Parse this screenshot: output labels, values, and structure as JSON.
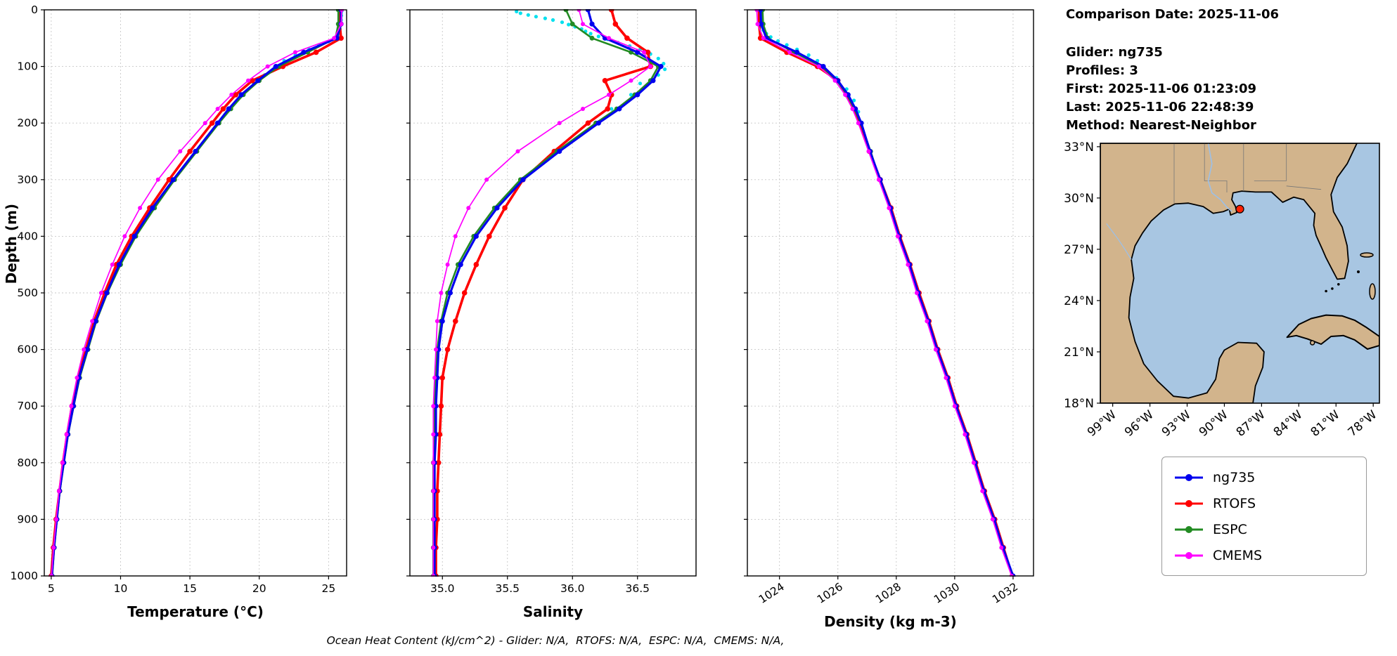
{
  "info_panel": {
    "comparison_date": "Comparison Date: 2025-11-06",
    "lines": [
      "Glider: ng735",
      "Profiles: 3",
      "First: 2025-11-06 01:23:09",
      "Last: 2025-11-06 22:48:39",
      "Method: Nearest-Neighbor"
    ]
  },
  "ylabel": "Depth (m)",
  "caption": "Ocean Heat Content (kJ/cm^2) - Glider: N/A,  RTOFS: N/A,  ESPC: N/A,  CMEMS: N/A,",
  "legend": {
    "items": [
      {
        "label": "ng735",
        "color": "#0000ee"
      },
      {
        "label": "RTOFS",
        "color": "#ff0000"
      },
      {
        "label": "ESPC",
        "color": "#228b22"
      },
      {
        "label": "CMEMS",
        "color": "#ff00ff"
      }
    ]
  },
  "map": {
    "extent": {
      "lon_w_max": 100.0,
      "lon_w_min": 77.5,
      "lat_max": 33.2,
      "lat_min": 18.0
    },
    "lat_ticks": [
      {
        "v": 33,
        "label": "33°N"
      },
      {
        "v": 30,
        "label": "30°N"
      },
      {
        "v": 27,
        "label": "27°N"
      },
      {
        "v": 24,
        "label": "24°N"
      },
      {
        "v": 21,
        "label": "21°N"
      },
      {
        "v": 18,
        "label": "18°N"
      }
    ],
    "lon_ticks": [
      {
        "v": 99,
        "label": "99°W"
      },
      {
        "v": 96,
        "label": "96°W"
      },
      {
        "v": 93,
        "label": "93°W"
      },
      {
        "v": 90,
        "label": "90°W"
      },
      {
        "v": 87,
        "label": "87°W"
      },
      {
        "v": 84,
        "label": "84°W"
      },
      {
        "v": 81,
        "label": "81°W"
      },
      {
        "v": 78,
        "label": "78°W"
      }
    ],
    "marker": {
      "lat": 29.35,
      "lon_w": 88.75,
      "color": "#ff2000"
    },
    "land_color": "#d2b48c",
    "water_color": "#a8c6e2"
  },
  "chart_data": [
    {
      "id": "temperature",
      "type": "line",
      "xlabel": "Temperature (°C)",
      "xlim": [
        4.5,
        26.3
      ],
      "ylim": [
        0,
        1000
      ],
      "xticks": [
        {
          "v": 5,
          "label": "5"
        },
        {
          "v": 10,
          "label": "10"
        },
        {
          "v": 15,
          "label": "15"
        },
        {
          "v": 20,
          "label": "20"
        },
        {
          "v": 25,
          "label": "25"
        }
      ],
      "yticks": [
        {
          "v": 0,
          "label": "0"
        },
        {
          "v": 100,
          "label": "100"
        },
        {
          "v": 200,
          "label": "200"
        },
        {
          "v": 300,
          "label": "300"
        },
        {
          "v": 400,
          "label": "400"
        },
        {
          "v": 500,
          "label": "500"
        },
        {
          "v": 600,
          "label": "600"
        },
        {
          "v": 700,
          "label": "700"
        },
        {
          "v": 800,
          "label": "800"
        },
        {
          "v": 900,
          "label": "900"
        },
        {
          "v": 1000,
          "label": "1000"
        }
      ],
      "show_depth_labels": true,
      "rotate_xticklabels": false,
      "depths": [
        0,
        25,
        50,
        75,
        100,
        125,
        150,
        175,
        200,
        250,
        300,
        350,
        400,
        450,
        500,
        550,
        600,
        650,
        700,
        750,
        800,
        850,
        900,
        950,
        1000
      ],
      "series": [
        {
          "name": "glider-raw",
          "color": "#00e0ee",
          "line": false,
          "marker": 2.6,
          "depths": [
            2,
            6,
            10,
            14,
            18,
            22,
            26,
            30,
            34,
            38,
            42,
            46,
            50,
            56,
            62,
            70,
            80,
            90,
            100,
            115,
            130,
            150,
            175,
            200,
            250,
            300,
            350,
            400,
            450,
            500,
            600,
            700,
            800,
            900,
            1000
          ],
          "values": [
            25.95,
            25.9,
            25.92,
            25.88,
            25.9,
            25.85,
            25.88,
            25.8,
            25.82,
            25.78,
            25.75,
            25.7,
            25.6,
            25.0,
            24.3,
            23.6,
            22.6,
            21.8,
            21.15,
            20.4,
            19.6,
            18.65,
            17.75,
            16.95,
            15.35,
            13.75,
            12.25,
            10.95,
            9.85,
            8.95,
            7.55,
            6.55,
            5.85,
            5.35,
            5.0
          ]
        },
        {
          "name": "RTOFS",
          "color": "#ff0000",
          "width": 3.6,
          "marker": 3.8,
          "values": [
            25.8,
            25.8,
            25.9,
            24.1,
            21.7,
            19.5,
            18.3,
            17.4,
            16.6,
            15.0,
            13.5,
            12.1,
            10.8,
            9.7,
            8.85,
            8.1,
            7.5,
            6.95,
            6.5,
            6.15,
            5.85,
            5.6,
            5.35,
            5.15,
            5.0
          ]
        },
        {
          "name": "ESPC",
          "color": "#228b22",
          "width": 2.6,
          "marker": 3.4,
          "values": [
            25.7,
            25.7,
            25.5,
            23.5,
            21.4,
            20.0,
            18.85,
            17.95,
            17.1,
            15.5,
            13.9,
            12.45,
            11.1,
            10.0,
            9.05,
            8.25,
            7.65,
            7.05,
            6.62,
            6.22,
            5.92,
            5.62,
            5.42,
            5.22,
            5.07
          ]
        },
        {
          "name": "ng735",
          "color": "#0000ee",
          "width": 3.2,
          "marker": 3.6,
          "values": [
            25.9,
            25.9,
            25.6,
            23.2,
            21.2,
            19.9,
            18.7,
            17.8,
            17.0,
            15.4,
            13.8,
            12.3,
            11.0,
            9.9,
            9.0,
            8.2,
            7.6,
            7.0,
            6.6,
            6.2,
            5.9,
            5.6,
            5.4,
            5.2,
            5.05
          ]
        },
        {
          "name": "CMEMS",
          "color": "#ff00ff",
          "width": 1.7,
          "marker": 3.0,
          "values": [
            25.95,
            25.92,
            25.4,
            22.6,
            20.6,
            19.2,
            18.0,
            17.0,
            16.1,
            14.3,
            12.7,
            11.4,
            10.3,
            9.4,
            8.6,
            7.95,
            7.35,
            6.85,
            6.45,
            6.1,
            5.82,
            5.56,
            5.36,
            5.17,
            5.02
          ]
        }
      ]
    },
    {
      "id": "salinity",
      "type": "line",
      "xlabel": "Salinity",
      "xlim": [
        34.75,
        36.95
      ],
      "ylim": [
        0,
        1000
      ],
      "xticks": [
        {
          "v": 35.0,
          "label": "35.0"
        },
        {
          "v": 35.5,
          "label": "35.5"
        },
        {
          "v": 36.0,
          "label": "36.0"
        },
        {
          "v": 36.5,
          "label": "36.5"
        }
      ],
      "yticks": [
        {
          "v": 0,
          "label": "0"
        },
        {
          "v": 100,
          "label": "100"
        },
        {
          "v": 200,
          "label": "200"
        },
        {
          "v": 300,
          "label": "300"
        },
        {
          "v": 400,
          "label": "400"
        },
        {
          "v": 500,
          "label": "500"
        },
        {
          "v": 600,
          "label": "600"
        },
        {
          "v": 700,
          "label": "700"
        },
        {
          "v": 800,
          "label": "800"
        },
        {
          "v": 900,
          "label": "900"
        },
        {
          "v": 1000,
          "label": "1000"
        }
      ],
      "show_depth_labels": false,
      "rotate_xticklabels": false,
      "depths": [
        0,
        25,
        50,
        75,
        100,
        125,
        150,
        175,
        200,
        250,
        300,
        350,
        400,
        450,
        500,
        550,
        600,
        650,
        700,
        750,
        800,
        850,
        900,
        950,
        1000
      ],
      "series": [
        {
          "name": "glider-raw",
          "color": "#00e0ee",
          "line": false,
          "marker": 2.6,
          "depths": [
            3,
            6,
            9,
            12,
            15,
            18,
            22,
            26,
            30,
            34,
            38,
            42,
            47,
            52,
            58,
            64,
            70,
            78,
            86,
            95,
            105,
            115,
            130,
            150,
            175,
            200,
            250,
            300,
            350,
            400,
            500,
            600,
            700,
            800,
            900,
            1000
          ],
          "values": [
            35.57,
            35.6,
            35.66,
            35.72,
            35.79,
            35.85,
            35.92,
            35.97,
            36.02,
            36.07,
            36.1,
            36.14,
            36.2,
            36.27,
            36.35,
            36.44,
            36.52,
            36.6,
            36.66,
            36.7,
            36.71,
            36.66,
            36.52,
            36.45,
            36.3,
            36.18,
            35.88,
            35.6,
            35.4,
            35.25,
            35.05,
            34.96,
            34.95,
            34.94,
            34.94,
            34.93
          ]
        },
        {
          "name": "RTOFS",
          "color": "#ff0000",
          "width": 3.6,
          "marker": 3.8,
          "values": [
            36.3,
            36.33,
            36.42,
            36.58,
            36.6,
            36.25,
            36.3,
            36.27,
            36.12,
            35.86,
            35.62,
            35.48,
            35.36,
            35.26,
            35.17,
            35.1,
            35.04,
            35.0,
            34.99,
            34.98,
            34.97,
            34.96,
            34.96,
            34.95,
            34.95
          ]
        },
        {
          "name": "ESPC",
          "color": "#228b22",
          "width": 2.6,
          "marker": 3.4,
          "values": [
            35.95,
            36.0,
            36.15,
            36.45,
            36.66,
            36.6,
            36.48,
            36.34,
            36.18,
            35.88,
            35.6,
            35.4,
            35.24,
            35.12,
            35.04,
            34.99,
            34.96,
            34.95,
            34.94,
            34.94,
            34.93,
            34.93,
            34.93,
            34.93,
            34.93
          ]
        },
        {
          "name": "ng735",
          "color": "#0000ee",
          "width": 3.2,
          "marker": 3.6,
          "values": [
            36.12,
            36.15,
            36.25,
            36.5,
            36.68,
            36.62,
            36.5,
            36.36,
            36.2,
            35.9,
            35.62,
            35.42,
            35.26,
            35.14,
            35.06,
            35.0,
            34.97,
            34.96,
            34.95,
            34.95,
            34.94,
            34.94,
            34.94,
            34.94,
            34.94
          ]
        },
        {
          "name": "CMEMS",
          "color": "#ff00ff",
          "width": 1.7,
          "marker": 3.0,
          "values": [
            36.05,
            36.08,
            36.28,
            36.55,
            36.6,
            36.45,
            36.28,
            36.08,
            35.9,
            35.58,
            35.34,
            35.2,
            35.1,
            35.04,
            34.99,
            34.96,
            34.95,
            34.94,
            34.93,
            34.93,
            34.93,
            34.93,
            34.93,
            34.93,
            34.93
          ]
        }
      ]
    },
    {
      "id": "density",
      "type": "line",
      "xlabel": "Density (kg m-3)",
      "xlim": [
        1022.9,
        1032.7
      ],
      "ylim": [
        0,
        1000
      ],
      "xticks": [
        {
          "v": 1024,
          "label": "1024"
        },
        {
          "v": 1026,
          "label": "1026"
        },
        {
          "v": 1028,
          "label": "1028"
        },
        {
          "v": 1030,
          "label": "1030"
        },
        {
          "v": 1032,
          "label": "1032"
        }
      ],
      "yticks": [
        {
          "v": 0,
          "label": "0"
        },
        {
          "v": 100,
          "label": "100"
        },
        {
          "v": 200,
          "label": "200"
        },
        {
          "v": 300,
          "label": "300"
        },
        {
          "v": 400,
          "label": "400"
        },
        {
          "v": 500,
          "label": "500"
        },
        {
          "v": 600,
          "label": "600"
        },
        {
          "v": 700,
          "label": "700"
        },
        {
          "v": 800,
          "label": "800"
        },
        {
          "v": 900,
          "label": "900"
        },
        {
          "v": 1000,
          "label": "1000"
        }
      ],
      "show_depth_labels": false,
      "rotate_xticklabels": true,
      "depths": [
        0,
        25,
        50,
        75,
        100,
        125,
        150,
        175,
        200,
        250,
        300,
        350,
        400,
        450,
        500,
        550,
        600,
        650,
        700,
        750,
        800,
        850,
        900,
        950,
        1000
      ],
      "series": [
        {
          "name": "glider-raw",
          "color": "#00e0ee",
          "line": false,
          "marker": 2.6,
          "depths": [
            2,
            6,
            10,
            15,
            20,
            25,
            30,
            36,
            42,
            48,
            55,
            62,
            70,
            80,
            90,
            100,
            120,
            140,
            160,
            180,
            200,
            250,
            300,
            400,
            500,
            600,
            700,
            800,
            900,
            1000
          ],
          "values": [
            1023.33,
            1023.34,
            1023.35,
            1023.36,
            1023.37,
            1023.38,
            1023.4,
            1023.45,
            1023.55,
            1023.7,
            1023.95,
            1024.25,
            1024.6,
            1025.0,
            1025.3,
            1025.52,
            1025.95,
            1026.3,
            1026.55,
            1026.7,
            1026.82,
            1027.12,
            1027.46,
            1028.1,
            1028.76,
            1029.41,
            1030.06,
            1030.71,
            1031.36,
            1032.0
          ]
        },
        {
          "name": "RTOFS",
          "color": "#ff0000",
          "width": 3.6,
          "marker": 3.8,
          "values": [
            1023.3,
            1023.3,
            1023.35,
            1024.25,
            1025.3,
            1026.0,
            1026.3,
            1026.55,
            1026.75,
            1027.08,
            1027.45,
            1027.82,
            1028.12,
            1028.47,
            1028.78,
            1029.12,
            1029.42,
            1029.77,
            1030.07,
            1030.42,
            1030.72,
            1031.02,
            1031.37,
            1031.67,
            1031.97
          ]
        },
        {
          "name": "ESPC",
          "color": "#228b22",
          "width": 2.6,
          "marker": 3.4,
          "values": [
            1023.42,
            1023.44,
            1023.6,
            1024.5,
            1025.45,
            1025.97,
            1026.32,
            1026.57,
            1026.78,
            1027.12,
            1027.43,
            1027.78,
            1028.08,
            1028.43,
            1028.73,
            1029.08,
            1029.38,
            1029.73,
            1030.03,
            1030.38,
            1030.68,
            1030.98,
            1031.33,
            1031.63,
            1031.98
          ]
        },
        {
          "name": "ng735",
          "color": "#0000ee",
          "width": 3.2,
          "marker": 3.6,
          "values": [
            1023.35,
            1023.37,
            1023.55,
            1024.6,
            1025.5,
            1026.0,
            1026.35,
            1026.6,
            1026.8,
            1027.1,
            1027.45,
            1027.8,
            1028.1,
            1028.45,
            1028.75,
            1029.1,
            1029.4,
            1029.75,
            1030.05,
            1030.4,
            1030.7,
            1031.0,
            1031.35,
            1031.65,
            1032.0
          ]
        },
        {
          "name": "CMEMS",
          "color": "#ff00ff",
          "width": 1.7,
          "marker": 3.0,
          "values": [
            1023.22,
            1023.25,
            1023.45,
            1024.35,
            1025.35,
            1025.9,
            1026.25,
            1026.5,
            1026.7,
            1027.05,
            1027.4,
            1027.75,
            1028.05,
            1028.4,
            1028.7,
            1029.05,
            1029.35,
            1029.7,
            1030.0,
            1030.35,
            1030.65,
            1030.95,
            1031.3,
            1031.6,
            1031.95
          ]
        }
      ]
    }
  ]
}
